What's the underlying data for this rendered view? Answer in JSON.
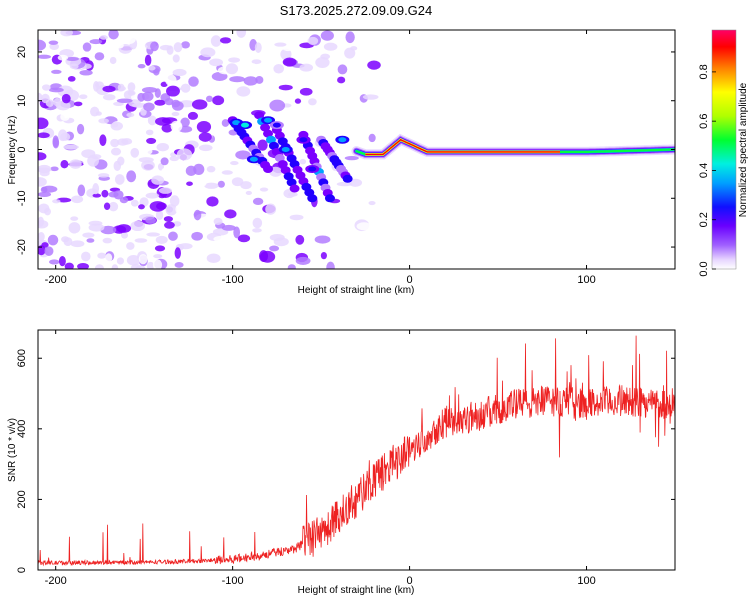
{
  "chart_data": [
    {
      "type": "heatmap",
      "title": "S173.2025.272.09.09.G24",
      "xlabel": "Height of straight line (km)",
      "ylabel": "Frequency (Hz)",
      "xlim": [
        -210,
        150
      ],
      "ylim": [
        -24.5,
        24.5
      ],
      "xticks": [
        -200,
        -100,
        0,
        100
      ],
      "yticks": [
        -20,
        -10,
        0,
        10,
        20
      ],
      "colorbar": {
        "label": "Normalized spectral amplitude",
        "range": [
          0,
          0.97
        ],
        "ticks": [
          "0.0",
          "0.2",
          "0.4",
          "0.6",
          "0.8"
        ],
        "tick_values": [
          0,
          0.2,
          0.4,
          0.6,
          0.8
        ]
      },
      "ridge": {
        "description_points": [
          {
            "x": -100,
            "y": 5
          },
          {
            "x": -80,
            "y": 5
          },
          {
            "x": -60,
            "y": 2
          },
          {
            "x": -40,
            "y": 1
          },
          {
            "x": -25,
            "y": -1
          },
          {
            "x": -15,
            "y": -1
          },
          {
            "x": -5,
            "y": 2
          },
          {
            "x": 10,
            "y": -0.5
          },
          {
            "x": 50,
            "y": -0.5
          },
          {
            "x": 100,
            "y": -0.5
          },
          {
            "x": 150,
            "y": 0
          }
        ],
        "peak_amplitude": 0.97
      },
      "colors": [
        "#ffffff",
        "#e8d8ff",
        "#b37cff",
        "#7b00ff",
        "#2200ff",
        "#00a0ff",
        "#00f0e0",
        "#00ff40",
        "#c0ff00",
        "#ffff00",
        "#ff8000",
        "#ff0000",
        "#ff0060"
      ]
    },
    {
      "type": "line",
      "title": "",
      "xlabel": "Height of straight line (km)",
      "ylabel": "SNR (10 * v/v)",
      "xlim": [
        -210,
        150
      ],
      "ylim": [
        0,
        680
      ],
      "xticks": [
        -200,
        -100,
        0,
        100
      ],
      "yticks": [
        0,
        200,
        400,
        600
      ],
      "series": [
        {
          "name": "SNR",
          "color": "#ee2222",
          "trend": [
            {
              "x": -210,
              "y": 20
            },
            {
              "x": -150,
              "y": 22
            },
            {
              "x": -120,
              "y": 25
            },
            {
              "x": -100,
              "y": 30
            },
            {
              "x": -80,
              "y": 45
            },
            {
              "x": -65,
              "y": 60
            },
            {
              "x": -50,
              "y": 100
            },
            {
              "x": -35,
              "y": 180
            },
            {
              "x": -20,
              "y": 250
            },
            {
              "x": -10,
              "y": 300
            },
            {
              "x": 0,
              "y": 340
            },
            {
              "x": 10,
              "y": 380
            },
            {
              "x": 20,
              "y": 420
            },
            {
              "x": 40,
              "y": 440
            },
            {
              "x": 60,
              "y": 470
            },
            {
              "x": 80,
              "y": 480
            },
            {
              "x": 100,
              "y": 470
            },
            {
              "x": 120,
              "y": 480
            },
            {
              "x": 150,
              "y": 470
            }
          ]
        }
      ]
    }
  ]
}
